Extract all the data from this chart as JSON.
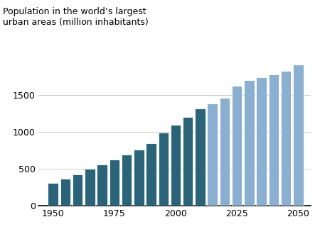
{
  "years": [
    1950,
    1955,
    1960,
    1965,
    1970,
    1975,
    1980,
    1985,
    1990,
    1995,
    2000,
    2005,
    2010,
    2015,
    2020,
    2025,
    2030,
    2035,
    2040,
    2045,
    2050
  ],
  "values": [
    310,
    365,
    430,
    500,
    560,
    625,
    690,
    760,
    845,
    990,
    1100,
    1200,
    1320,
    1390,
    1460,
    1630,
    1700,
    1740,
    1780,
    1830,
    2050
  ],
  "colors": [
    "#2B6478",
    "#2B6478",
    "#2B6478",
    "#2B6478",
    "#2B6478",
    "#2B6478",
    "#2B6478",
    "#2B6478",
    "#2B6478",
    "#2B6478",
    "#2B6478",
    "#2B6478",
    "#2B6478",
    "#8BAFD0",
    "#8BAFD0",
    "#8BAFD0",
    "#8BAFD0",
    "#8BAFD0",
    "#8BAFD0",
    "#8BAFD0",
    "#8BAFD0"
  ],
  "title": "Population in the world’s largest\nurban areas (million inhabitants)",
  "yticks": [
    0,
    500,
    1000,
    1500
  ],
  "ylim": [
    0,
    1900
  ],
  "xlim": [
    1944,
    2055
  ],
  "xticks": [
    1950,
    1975,
    2000,
    2025,
    2050
  ],
  "bg_color": "#FFFFFF",
  "grid_color": "#CCCCCC",
  "bar_width": 4.2,
  "title_fontsize": 9,
  "tick_fontsize": 9
}
